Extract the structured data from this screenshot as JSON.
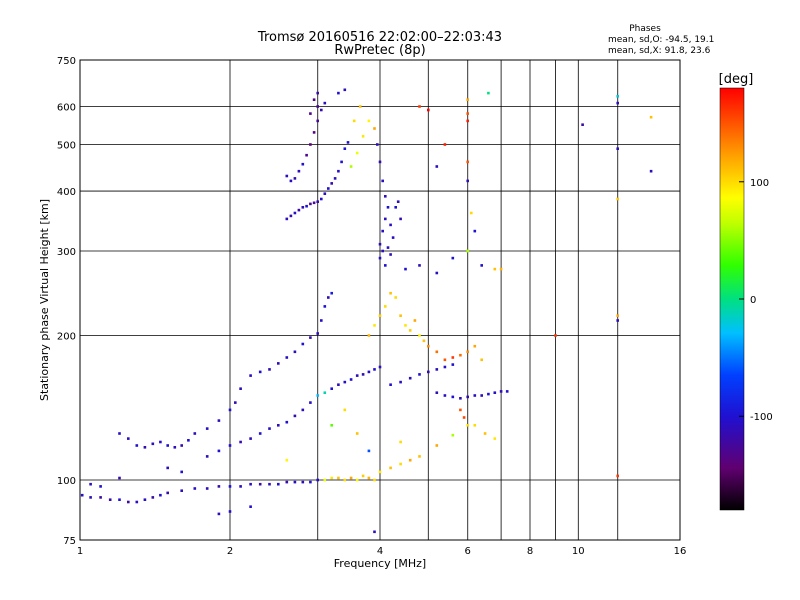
{
  "chart_data": {
    "type": "scatter",
    "title": "Tromsø 20160516 22:02:00–22:03:43",
    "subtitle": "RwPretec (8p)",
    "xlabel": "Frequency [MHz]",
    "ylabel": "Stationary phase Virtual Height [km]",
    "x_scale": "log",
    "y_scale": "log",
    "xlim": [
      1,
      16
    ],
    "ylim": [
      75,
      750
    ],
    "x_ticks": [
      1,
      2,
      4,
      6,
      8,
      10,
      16
    ],
    "x_grid": [
      2,
      3,
      4,
      5,
      6,
      7,
      8,
      9,
      10,
      12
    ],
    "y_ticks": [
      75,
      100,
      200,
      300,
      400,
      500,
      600,
      750
    ],
    "grid": true,
    "phase_stats": {
      "title": "Phases",
      "o_line": "mean, sd,O: -94.5, 19.1",
      "x_line": "mean, sd,X:  91.8, 23.6"
    },
    "colorbar": {
      "label": "[deg]",
      "range": [
        -180,
        180
      ],
      "ticks": [
        100,
        0,
        -100
      ],
      "placement": "right"
    },
    "series": [
      {
        "name": "",
        "points": [
          [
            1.01,
            93,
            -105
          ],
          [
            1.05,
            92,
            -110
          ],
          [
            1.1,
            92,
            -120
          ],
          [
            1.15,
            91,
            -115
          ],
          [
            1.2,
            91,
            -100
          ],
          [
            1.25,
            90,
            -125
          ],
          [
            1.3,
            90,
            -110
          ],
          [
            1.35,
            91,
            -105
          ],
          [
            1.4,
            92,
            -120
          ],
          [
            1.45,
            93,
            -100
          ],
          [
            1.5,
            94,
            -115
          ],
          [
            1.6,
            95,
            -110
          ],
          [
            1.7,
            96,
            -105
          ],
          [
            1.8,
            96,
            -110
          ],
          [
            1.9,
            97,
            -115
          ],
          [
            2.0,
            97,
            -100
          ],
          [
            2.1,
            97,
            -110
          ],
          [
            2.2,
            98,
            -105
          ],
          [
            2.3,
            98,
            -120
          ],
          [
            2.4,
            98,
            -110
          ],
          [
            2.5,
            98,
            -100
          ],
          [
            2.6,
            99,
            -115
          ],
          [
            2.7,
            99,
            -105
          ],
          [
            2.8,
            99,
            -110
          ],
          [
            2.9,
            99,
            -100
          ],
          [
            3.0,
            100,
            -105
          ],
          [
            3.1,
            100,
            80
          ],
          [
            3.2,
            101,
            95
          ],
          [
            3.3,
            101,
            110
          ],
          [
            3.4,
            100,
            100
          ],
          [
            3.5,
            101,
            120
          ],
          [
            3.6,
            100,
            90
          ],
          [
            3.7,
            102,
            105
          ],
          [
            3.8,
            101,
            115
          ],
          [
            3.9,
            100,
            100
          ],
          [
            4.0,
            104,
            95
          ],
          [
            4.2,
            106,
            110
          ],
          [
            4.4,
            108,
            100
          ],
          [
            4.6,
            110,
            120
          ],
          [
            1.05,
            98,
            -110
          ],
          [
            1.1,
            97,
            -100
          ],
          [
            1.2,
            101,
            -115
          ],
          [
            1.2,
            125,
            -105
          ],
          [
            1.25,
            122,
            -110
          ],
          [
            1.3,
            118,
            -100
          ],
          [
            1.35,
            117,
            -115
          ],
          [
            1.4,
            119,
            -110
          ],
          [
            1.45,
            120,
            -105
          ],
          [
            1.5,
            118,
            -100
          ],
          [
            1.55,
            117,
            -110
          ],
          [
            1.6,
            118,
            -115
          ],
          [
            1.65,
            121,
            -100
          ],
          [
            1.7,
            125,
            -110
          ],
          [
            1.8,
            128,
            -105
          ],
          [
            1.9,
            133,
            -110
          ],
          [
            2.0,
            140,
            -100
          ],
          [
            2.05,
            145,
            -115
          ],
          [
            2.1,
            155,
            -110
          ],
          [
            2.2,
            165,
            -105
          ],
          [
            2.3,
            168,
            -100
          ],
          [
            2.4,
            170,
            -110
          ],
          [
            2.5,
            175,
            -115
          ],
          [
            2.6,
            180,
            -105
          ],
          [
            2.7,
            185,
            -110
          ],
          [
            2.8,
            192,
            -100
          ],
          [
            2.9,
            198,
            -115
          ],
          [
            3.0,
            202,
            -110
          ],
          [
            3.05,
            215,
            -105
          ],
          [
            3.1,
            230,
            -100
          ],
          [
            3.15,
            240,
            -110
          ],
          [
            3.2,
            245,
            -90
          ],
          [
            1.8,
            112,
            -110
          ],
          [
            1.9,
            115,
            -100
          ],
          [
            2.0,
            118,
            -105
          ],
          [
            2.1,
            120,
            -115
          ],
          [
            2.2,
            122,
            -110
          ],
          [
            2.3,
            125,
            -100
          ],
          [
            2.4,
            128,
            -105
          ],
          [
            2.5,
            130,
            -110
          ],
          [
            2.6,
            132,
            -100
          ],
          [
            2.7,
            136,
            -115
          ],
          [
            2.8,
            140,
            -110
          ],
          [
            2.9,
            145,
            -105
          ],
          [
            3.0,
            150,
            -30
          ],
          [
            3.1,
            152,
            -10
          ],
          [
            3.2,
            155,
            -100
          ],
          [
            3.3,
            158,
            -110
          ],
          [
            3.4,
            160,
            -105
          ],
          [
            3.5,
            162,
            -100
          ],
          [
            3.6,
            165,
            -110
          ],
          [
            3.7,
            166,
            -115
          ],
          [
            3.8,
            168,
            -105
          ],
          [
            3.9,
            170,
            -100
          ],
          [
            4.0,
            172,
            -110
          ],
          [
            4.2,
            158,
            -100
          ],
          [
            4.4,
            160,
            -105
          ],
          [
            4.6,
            163,
            -110
          ],
          [
            4.8,
            166,
            -100
          ],
          [
            5.0,
            168,
            -115
          ],
          [
            5.2,
            170,
            -110
          ],
          [
            5.4,
            172,
            -105
          ],
          [
            5.6,
            174,
            -100
          ],
          [
            5.2,
            152,
            -110
          ],
          [
            5.4,
            150,
            -105
          ],
          [
            5.6,
            149,
            -100
          ],
          [
            5.8,
            148,
            -110
          ],
          [
            6.0,
            149,
            -115
          ],
          [
            6.2,
            150,
            -105
          ],
          [
            6.4,
            150,
            -110
          ],
          [
            6.6,
            151,
            -100
          ],
          [
            6.8,
            152,
            -105
          ],
          [
            7.0,
            153,
            -110
          ],
          [
            7.2,
            153,
            -100
          ],
          [
            2.6,
            350,
            -110
          ],
          [
            2.65,
            355,
            -115
          ],
          [
            2.7,
            360,
            -105
          ],
          [
            2.75,
            365,
            -120
          ],
          [
            2.8,
            370,
            -110
          ],
          [
            2.85,
            372,
            -100
          ],
          [
            2.9,
            376,
            -130
          ],
          [
            2.95,
            378,
            -125
          ],
          [
            3.0,
            380,
            -115
          ],
          [
            3.05,
            385,
            -105
          ],
          [
            3.1,
            395,
            -110
          ],
          [
            3.15,
            405,
            -100
          ],
          [
            3.2,
            415,
            -115
          ],
          [
            3.25,
            425,
            -110
          ],
          [
            3.3,
            440,
            -105
          ],
          [
            3.35,
            460,
            -100
          ],
          [
            3.4,
            490,
            -95
          ],
          [
            3.45,
            505,
            -100
          ],
          [
            2.6,
            430,
            -110
          ],
          [
            2.65,
            420,
            -105
          ],
          [
            2.7,
            425,
            -115
          ],
          [
            2.75,
            440,
            -110
          ],
          [
            2.8,
            455,
            -100
          ],
          [
            2.85,
            475,
            -130
          ],
          [
            2.9,
            500,
            -140
          ],
          [
            2.95,
            530,
            -135
          ],
          [
            3.0,
            560,
            -125
          ],
          [
            3.0,
            600,
            -130
          ],
          [
            3.0,
            640,
            -120
          ],
          [
            2.95,
            620,
            -135
          ],
          [
            2.9,
            580,
            -130
          ],
          [
            3.05,
            590,
            -115
          ],
          [
            3.1,
            610,
            -110
          ],
          [
            3.5,
            450,
            60
          ],
          [
            3.6,
            480,
            80
          ],
          [
            3.7,
            520,
            95
          ],
          [
            3.55,
            560,
            100
          ],
          [
            3.65,
            600,
            110
          ],
          [
            3.8,
            560,
            90
          ],
          [
            3.9,
            540,
            120
          ],
          [
            3.3,
            640,
            -100
          ],
          [
            3.4,
            650,
            -110
          ],
          [
            3.95,
            500,
            -110
          ],
          [
            4.0,
            460,
            -115
          ],
          [
            4.05,
            420,
            -105
          ],
          [
            4.1,
            390,
            -110
          ],
          [
            4.15,
            370,
            -100
          ],
          [
            4.1,
            350,
            -110
          ],
          [
            4.05,
            330,
            -105
          ],
          [
            4.0,
            310,
            -115
          ],
          [
            4.05,
            300,
            -110
          ],
          [
            4.0,
            290,
            -105
          ],
          [
            4.1,
            280,
            -100
          ],
          [
            4.15,
            305,
            -110
          ],
          [
            4.2,
            340,
            -105
          ],
          [
            4.3,
            370,
            -100
          ],
          [
            4.35,
            380,
            -110
          ],
          [
            4.4,
            350,
            -115
          ],
          [
            4.25,
            320,
            -105
          ],
          [
            4.2,
            295,
            -110
          ],
          [
            4.3,
            240,
            100
          ],
          [
            4.4,
            220,
            110
          ],
          [
            4.5,
            210,
            95
          ],
          [
            4.6,
            205,
            105
          ],
          [
            4.7,
            215,
            120
          ],
          [
            4.8,
            200,
            90
          ],
          [
            4.9,
            195,
            110
          ],
          [
            5.0,
            190,
            130
          ],
          [
            5.2,
            185,
            140
          ],
          [
            5.4,
            178,
            150
          ],
          [
            5.6,
            180,
            160
          ],
          [
            5.8,
            182,
            140
          ],
          [
            6.0,
            185,
            130
          ],
          [
            6.2,
            190,
            120
          ],
          [
            6.4,
            178,
            110
          ],
          [
            5.8,
            140,
            150
          ],
          [
            5.9,
            135,
            155
          ],
          [
            6.2,
            130,
            100
          ],
          [
            6.5,
            125,
            110
          ],
          [
            6.8,
            122,
            95
          ],
          [
            3.9,
            210,
            95
          ],
          [
            4.0,
            220,
            105
          ],
          [
            4.1,
            230,
            100
          ],
          [
            4.2,
            245,
            110
          ],
          [
            3.8,
            200,
            115
          ],
          [
            4.5,
            275,
            -100
          ],
          [
            4.8,
            280,
            -110
          ],
          [
            5.2,
            270,
            -105
          ],
          [
            5.6,
            290,
            -100
          ],
          [
            6.0,
            300,
            40
          ],
          [
            6.4,
            280,
            -100
          ],
          [
            6.8,
            275,
            110
          ],
          [
            7.0,
            275,
            115
          ],
          [
            6.0,
            620,
            120
          ],
          [
            6.0,
            580,
            150
          ],
          [
            6.0,
            560,
            170
          ],
          [
            6.0,
            460,
            150
          ],
          [
            6.0,
            420,
            -110
          ],
          [
            6.1,
            360,
            100
          ],
          [
            6.2,
            330,
            -100
          ],
          [
            6.0,
            300,
            60
          ],
          [
            6.6,
            640,
            0
          ],
          [
            12.0,
            630,
            -20
          ],
          [
            12.0,
            610,
            -110
          ],
          [
            12.0,
            490,
            -110
          ],
          [
            12.0,
            385,
            110
          ],
          [
            12.0,
            220,
            120
          ],
          [
            12.0,
            215,
            -110
          ],
          [
            12.0,
            102,
            160
          ],
          [
            10.2,
            550,
            -120
          ],
          [
            14.0,
            570,
            110
          ],
          [
            14.0,
            440,
            -110
          ],
          [
            9.0,
            200,
            160
          ],
          [
            4.8,
            600,
            160
          ],
          [
            5.0,
            590,
            180
          ],
          [
            5.2,
            450,
            -110
          ],
          [
            5.4,
            500,
            170
          ],
          [
            3.9,
            78,
            -110
          ],
          [
            1.9,
            85,
            -110
          ],
          [
            2.0,
            86,
            -105
          ],
          [
            2.2,
            88,
            -100
          ],
          [
            1.5,
            106,
            -110
          ],
          [
            1.6,
            104,
            -100
          ],
          [
            2.6,
            110,
            90
          ],
          [
            3.2,
            130,
            40
          ],
          [
            3.4,
            140,
            100
          ],
          [
            3.6,
            125,
            110
          ],
          [
            3.8,
            115,
            -60
          ],
          [
            4.4,
            120,
            100
          ],
          [
            4.8,
            112,
            110
          ],
          [
            5.2,
            118,
            120
          ],
          [
            5.6,
            124,
            60
          ],
          [
            6.0,
            130,
            100
          ]
        ]
      }
    ]
  }
}
